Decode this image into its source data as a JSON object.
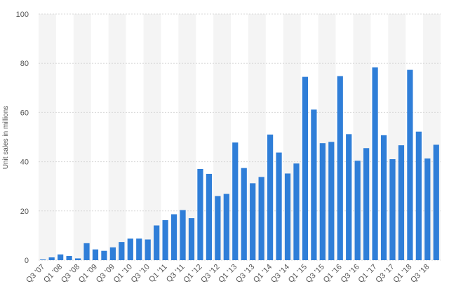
{
  "chart_data": {
    "type": "bar",
    "y_label": "Unit sales in millions",
    "categories": [
      "Q3 '07",
      null,
      "Q1 '08",
      null,
      "Q3 '08",
      null,
      "Q1 '09",
      null,
      "Q3 '09",
      null,
      "Q1 '10",
      null,
      "Q3 '10",
      null,
      "Q1 '11",
      null,
      "Q3 '11",
      null,
      "Q1 '12",
      null,
      "Q3 '12",
      null,
      "Q1 '13",
      null,
      "Q3 '13",
      null,
      "Q1 '14",
      null,
      "Q3 '14",
      null,
      "Q1 '15",
      null,
      "Q3 '15",
      null,
      "Q1 '16",
      null,
      "Q3 '16",
      null,
      "Q1 '17",
      null,
      "Q3 '17",
      null,
      "Q1 '18",
      null,
      "Q3 '18",
      null
    ],
    "values": [
      0.27,
      1.12,
      2.32,
      1.7,
      0.72,
      6.89,
      4.36,
      3.79,
      5.21,
      7.37,
      8.74,
      8.75,
      8.4,
      14.1,
      16.24,
      18.65,
      20.34,
      17.07,
      37.04,
      35.06,
      26.03,
      26.91,
      47.79,
      37.43,
      31.24,
      33.8,
      51.03,
      43.72,
      35.2,
      39.27,
      74.47,
      61.17,
      47.53,
      48.05,
      74.78,
      51.19,
      40.4,
      45.51,
      78.29,
      50.76,
      41.03,
      46.68,
      77.32,
      52.22,
      41.3,
      46.89
    ],
    "color": "#2f7ed8",
    "ylim": [
      0,
      100
    ],
    "yticks": [
      0,
      20,
      40,
      60,
      80,
      100
    ],
    "grid": true
  }
}
